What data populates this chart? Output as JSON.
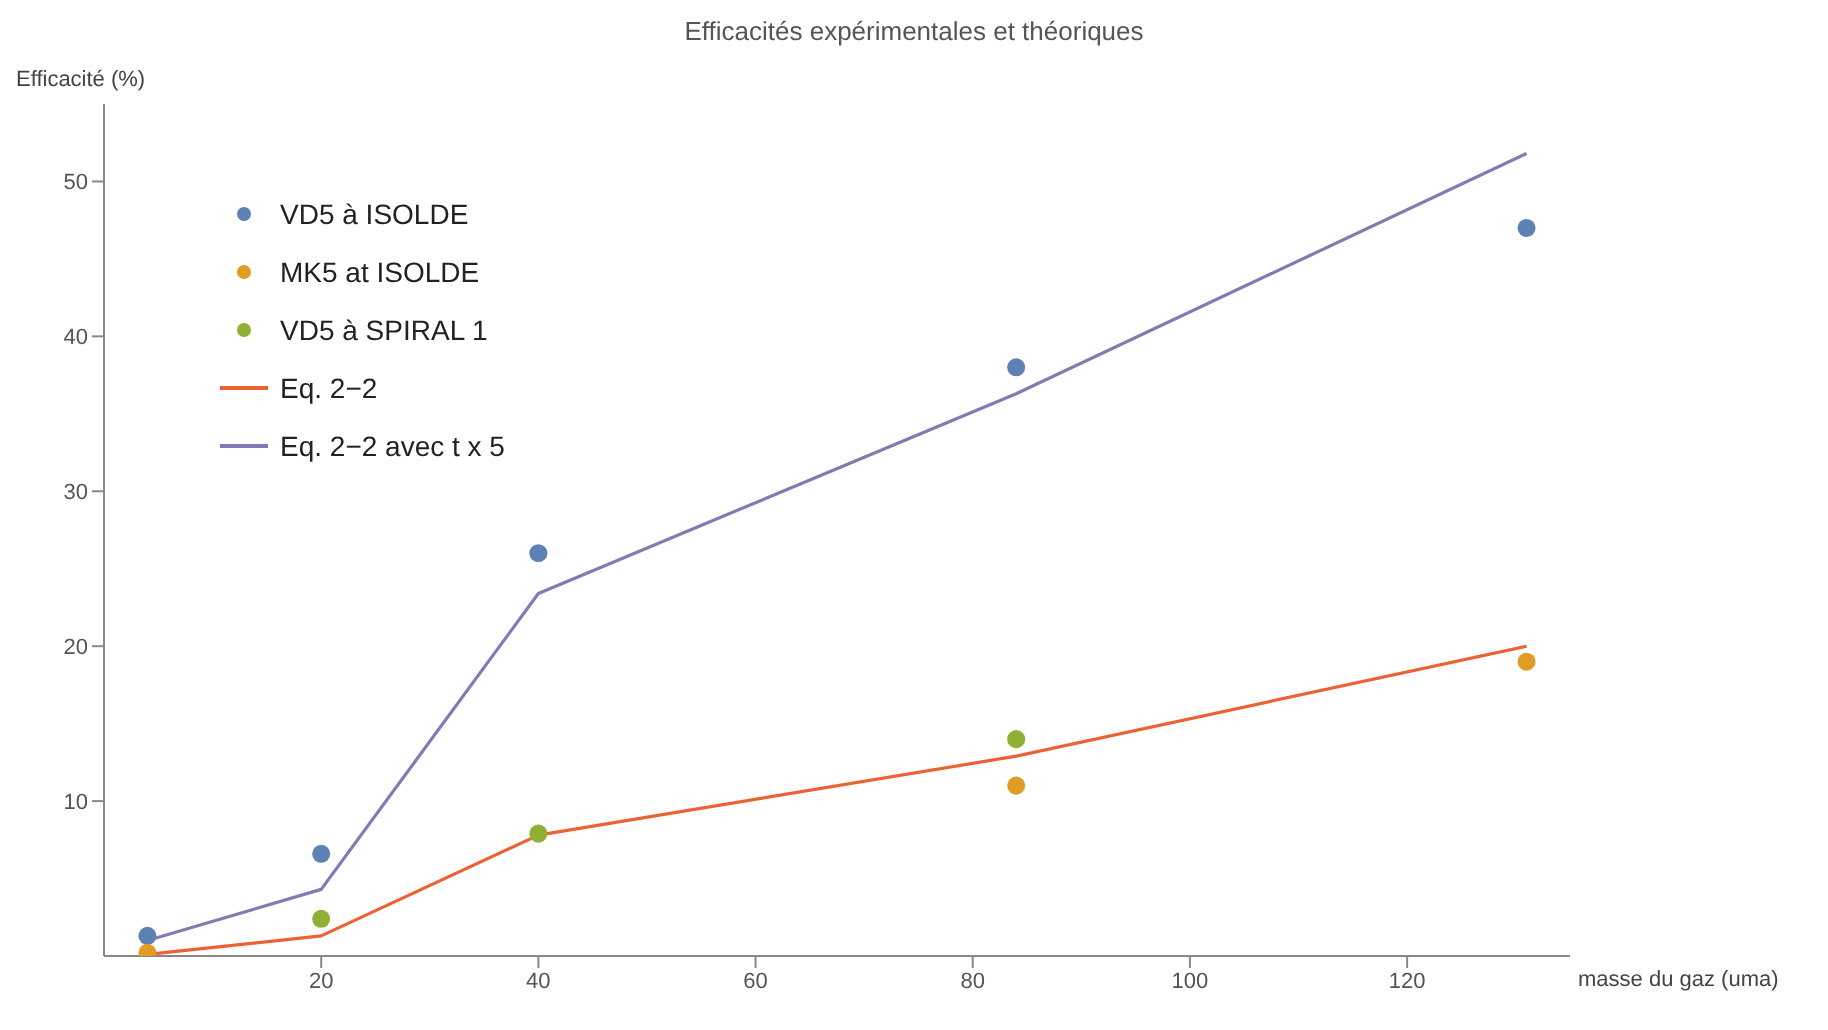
{
  "chart_data": {
    "type": "scatter",
    "title": "Efficacités  expérimentales  et théoriques",
    "xlabel": "masse  du gaz (uma)",
    "ylabel": "Efficacité  (%)",
    "xlim": [
      0,
      135
    ],
    "ylim": [
      0,
      55
    ],
    "xticks": [
      20,
      40,
      60,
      80,
      100,
      120
    ],
    "yticks": [
      10,
      20,
      30,
      40,
      50
    ],
    "grid": false,
    "legend": "top left",
    "series": [
      {
        "name": "VD5 à ISOLDE",
        "marker": "circle",
        "color": "#5e81b5",
        "x": [
          4,
          20,
          40,
          84,
          131
        ],
        "values": [
          1.3,
          6.6,
          26,
          38,
          47
        ]
      },
      {
        "name": "MK5 at ISOLDE",
        "marker": "circle",
        "color": "#e19c24",
        "x": [
          4,
          84,
          131
        ],
        "values": [
          0.2,
          11,
          19
        ]
      },
      {
        "name": "VD5 à SPIRAL  1",
        "marker": "circle",
        "color": "#8fb032",
        "x": [
          20,
          40,
          84
        ],
        "values": [
          2.4,
          7.9,
          14
        ]
      },
      {
        "name": "Eq. 2−2",
        "type": "line",
        "marker": "none",
        "color": "#eb6235",
        "x": [
          4,
          20,
          40,
          84,
          131
        ],
        "values": [
          0.1,
          1.3,
          7.8,
          12.9,
          20
        ]
      },
      {
        "name": "Eq. 2−2 avec t x 5",
        "type": "line",
        "marker": "none",
        "color": "#8778b3",
        "x": [
          4,
          20,
          40,
          84,
          131
        ],
        "values": [
          1,
          4.3,
          23.4,
          36.3,
          51.8
        ]
      }
    ]
  }
}
